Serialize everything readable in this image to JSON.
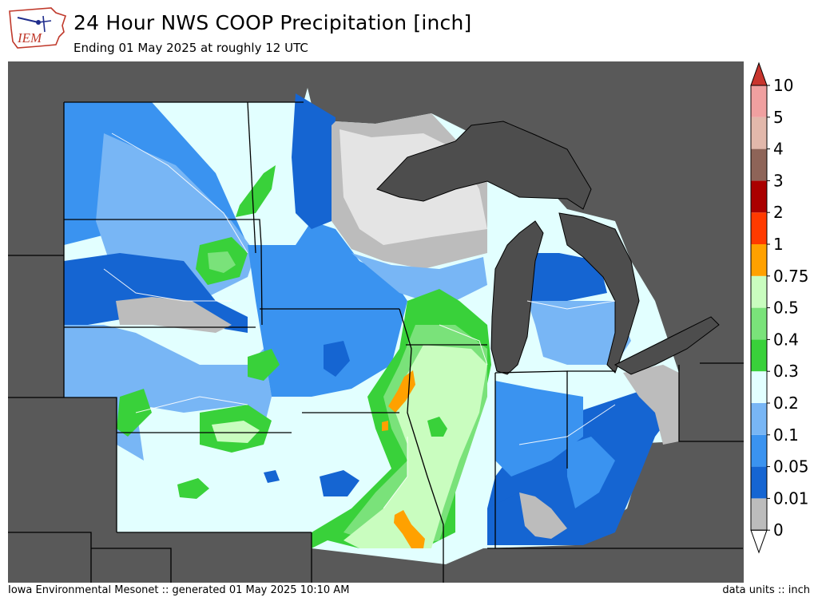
{
  "header": {
    "title": "24 Hour NWS COOP Precipitation [inch]",
    "subtitle": "Ending 01 May 2025 at roughly 12 UTC"
  },
  "logo": {
    "text": "IEM"
  },
  "footer": {
    "left": "Iowa Environmental Mesonet :: generated 01 May 2025 10:10 AM",
    "right": "data units :: inch"
  },
  "colors": {
    "background_out_of_domain": "#595959",
    "lake": "#4d4d4d",
    "zero": "#bcbcbc",
    "trace": "#e4e4e4",
    "0.01": "#1565d2",
    "0.05": "#3a93f0",
    "0.1": "#78b6f5",
    "0.2": "#e2ffff",
    "0.3": "#39d13a",
    "0.4": "#7ae27a",
    "0.5": "#c9fdbf",
    "0.75": "#ffa100",
    "1": "#ff3a00",
    "2": "#aa0000",
    "3": "#8e6458",
    "4": "#e2b8ab",
    "5": "#f0a0a0",
    "over": "#c8352e"
  },
  "legend": {
    "tick_labels": [
      "0",
      "0.01",
      "0.05",
      "0.1",
      "0.2",
      "0.3",
      "0.4",
      "0.5",
      "0.75",
      "1",
      "2",
      "3",
      "4",
      "5",
      "10"
    ]
  }
}
